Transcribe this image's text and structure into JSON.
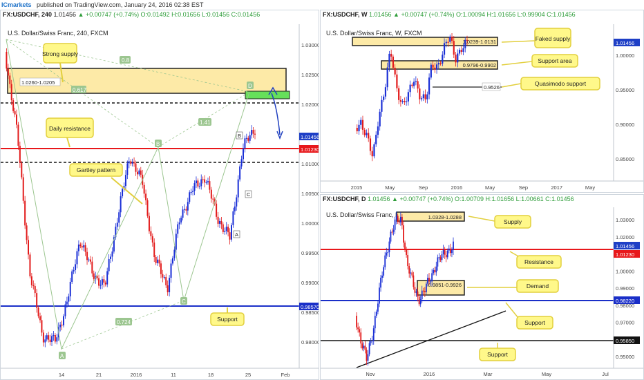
{
  "header": {
    "brand": "ICmarkets",
    "text": "published on TradingView.com, January 24, 2016 02:38 EST"
  },
  "colors": {
    "bull": "#1a2fd6",
    "bear": "#e21b1b",
    "support": "#1a2fc8",
    "resistance": "#e8181b",
    "zone": "#fdeaa7",
    "zone_border": "#222222",
    "green_zone": "#66e05a",
    "callout": "#fff88a",
    "callout_border": "#e2cf3d",
    "pattern": "#9cc690",
    "price_tag": "#1e3fc6"
  },
  "panes": [
    {
      "id": "h4",
      "symbol": "FX:USDCHF, 240",
      "ohlc": "▲ +0.00747 (+0.74%) O:0.01492 H:0.01656 L:0.01456 C:0.01456",
      "last": "1.01456",
      "subtitle": "U.S. Dollar/Swiss Franc, 240, FXCM",
      "callouts": [
        "Strong supply",
        "Daily resistance",
        "Gartley pattern",
        "Support"
      ],
      "zone_labels": [
        "1.0260-1.0205"
      ],
      "pattern_points": [
        "X",
        "A",
        "B",
        "C",
        "D"
      ],
      "ratios": [
        "0.8",
        "0.617",
        "1.41",
        "0.724"
      ],
      "extra_labels": [
        "A",
        "B",
        "C"
      ],
      "price_tags": [
        {
          "text": "1.01456",
          "kind": "price"
        },
        {
          "text": "1.01230",
          "kind": "resistance"
        },
        {
          "text": "0.98570",
          "kind": "support"
        }
      ],
      "y_ticks": [
        "1.03000",
        "1.02500",
        "1.02000",
        "1.01500",
        "1.01000",
        "1.00500",
        "1.00000",
        "0.99500",
        "0.99000",
        "0.98500",
        "0.98000"
      ],
      "x_ticks": [
        "14",
        "21",
        "2016",
        "11",
        "18",
        "25",
        "Feb"
      ]
    },
    {
      "id": "w",
      "symbol": "FX:USDCHF, W",
      "ohlc": "1.01456 ▲ +0.00747 (+0.74%) O:1.00094 H:1.01656 L:0.99904 C:1.01456",
      "subtitle": "U.S. Dollar/Swiss Franc, W, FXCM",
      "callouts": [
        "Faked supply",
        "Support area",
        "Quasimodo support"
      ],
      "zone_labels": [
        "1.0239-1.0131",
        "0.9796-0.9902"
      ],
      "level_labels": [
        "0.9526"
      ],
      "price_tags": [
        {
          "text": "1.01456",
          "kind": "price"
        }
      ],
      "y_ticks": [
        "1.00000",
        "0.95000",
        "0.90000",
        "0.85000"
      ],
      "x_ticks": [
        "2015",
        "May",
        "Sep",
        "2016",
        "May",
        "Sep",
        "2017",
        "May"
      ]
    },
    {
      "id": "d",
      "symbol": "FX:USDCHF, D",
      "ohlc": "1.01456 ▲ +0.00747 (+0.74%) O:1.00709 H:1.01656 L:1.00661 C:1.01456",
      "subtitle": "U.S. Dollar/Swiss Franc, D, FXCM",
      "callouts": [
        "Supply",
        "Resistance",
        "Demand",
        "Support",
        "Support"
      ],
      "zone_labels": [
        "1.0328-1.0288",
        "0.9851-0.9926"
      ],
      "price_tags": [
        {
          "text": "1.01456",
          "kind": "price"
        },
        {
          "text": "1.01230",
          "kind": "resistance"
        },
        {
          "text": "0.98220",
          "kind": "support"
        },
        {
          "text": "0.95850",
          "kind": "level"
        }
      ],
      "y_ticks": [
        "1.03000",
        "1.02000",
        "1.01000",
        "1.00000",
        "0.99000",
        "0.98000",
        "0.97000",
        "0.96000",
        "0.95000"
      ],
      "x_ticks": [
        "Nov",
        "2016",
        "Mar",
        "May",
        "Jul"
      ]
    }
  ]
}
